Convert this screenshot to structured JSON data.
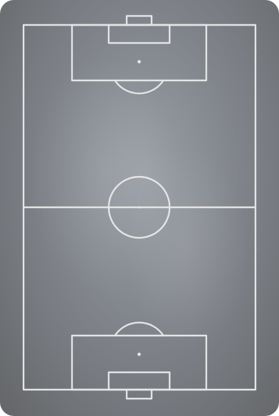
{
  "board": {
    "background_color": "#85888e",
    "line_color": "#e6e6e6"
  }
}
